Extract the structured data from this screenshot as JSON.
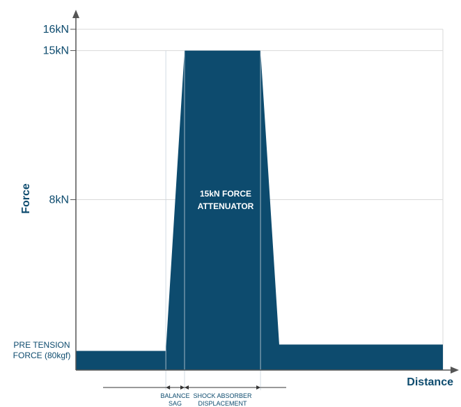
{
  "chart_data": {
    "type": "area",
    "y_ticks": [
      {
        "value": 16,
        "label": "16kN"
      },
      {
        "value": 15,
        "label": "15kN"
      },
      {
        "value": 8,
        "label": "8kN"
      }
    ],
    "ylabel": "Force",
    "xlabel": "Distance",
    "ylim": [
      0,
      16
    ],
    "pre_tension_label": [
      "PRE TENSION",
      "FORCE (80kgf)"
    ],
    "annotation": [
      "15kN FORCE",
      "ATTENUATOR"
    ],
    "profile": {
      "x": [
        0,
        0.245,
        0.296,
        0.503,
        0.554,
        1.0
      ],
      "y": [
        0.9,
        0.9,
        15,
        15,
        1.2,
        1.2
      ]
    },
    "spans": [
      {
        "label": [
          "BALANCE",
          "SAG"
        ],
        "from": 0.245,
        "to": 0.296
      },
      {
        "label": [
          "SHOCK ABSORBER",
          "DISPLACEMENT"
        ],
        "from": 0.296,
        "to": 0.503
      }
    ],
    "colors": {
      "fill": "#0d4b6e",
      "axis": "#555555",
      "grid": "#d9d9d9",
      "text": "#0d4b6e"
    },
    "grid": true
  }
}
